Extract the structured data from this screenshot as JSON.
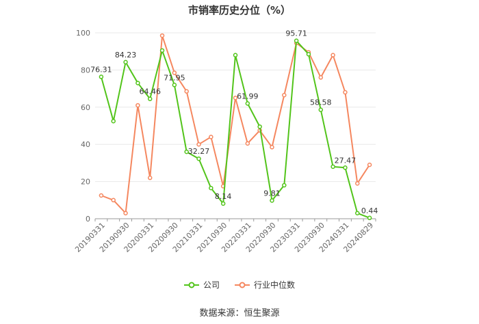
{
  "chart_data": {
    "type": "line",
    "title": "市销率历史分位（%）",
    "source": "数据来源：恒生聚源",
    "x": [
      "20190331",
      "",
      "20190930",
      "",
      "20200331",
      "",
      "20200930",
      "",
      "20210331",
      "",
      "20210930",
      "",
      "20220331",
      "",
      "20220930",
      "",
      "20230331",
      "",
      "20230930",
      "",
      "20240331",
      "",
      "20240829"
    ],
    "ylim": [
      0,
      100
    ],
    "yticks": [
      0,
      20,
      40,
      60,
      80,
      100
    ],
    "grid": true,
    "legend_position": "bottom",
    "series": [
      {
        "name": "公司",
        "color": "#52c41a",
        "values": [
          76.31,
          52.5,
          84.23,
          73,
          64.46,
          90.5,
          71.95,
          36,
          32.27,
          16.5,
          8.14,
          88,
          61.99,
          49.5,
          9.81,
          18,
          95.71,
          88.5,
          58.58,
          28,
          27.47,
          3,
          0.44
        ],
        "labels": [
          "76.31",
          "",
          "84.23",
          "",
          "64.46",
          "",
          "71.95",
          "",
          "32.27",
          "",
          "8.14",
          "",
          "61.99",
          "",
          "9.81",
          "",
          "95.71",
          "",
          "58.58",
          "",
          "27.47",
          "",
          "0.44"
        ]
      },
      {
        "name": "行业中位数",
        "color": "#f5875f",
        "values": [
          12.5,
          10,
          3,
          61,
          22,
          98.5,
          78.5,
          68.5,
          40,
          44,
          17.5,
          65,
          40.5,
          47.5,
          38.5,
          66.5,
          94.5,
          89.5,
          76,
          88,
          68,
          19,
          29
        ]
      }
    ]
  }
}
